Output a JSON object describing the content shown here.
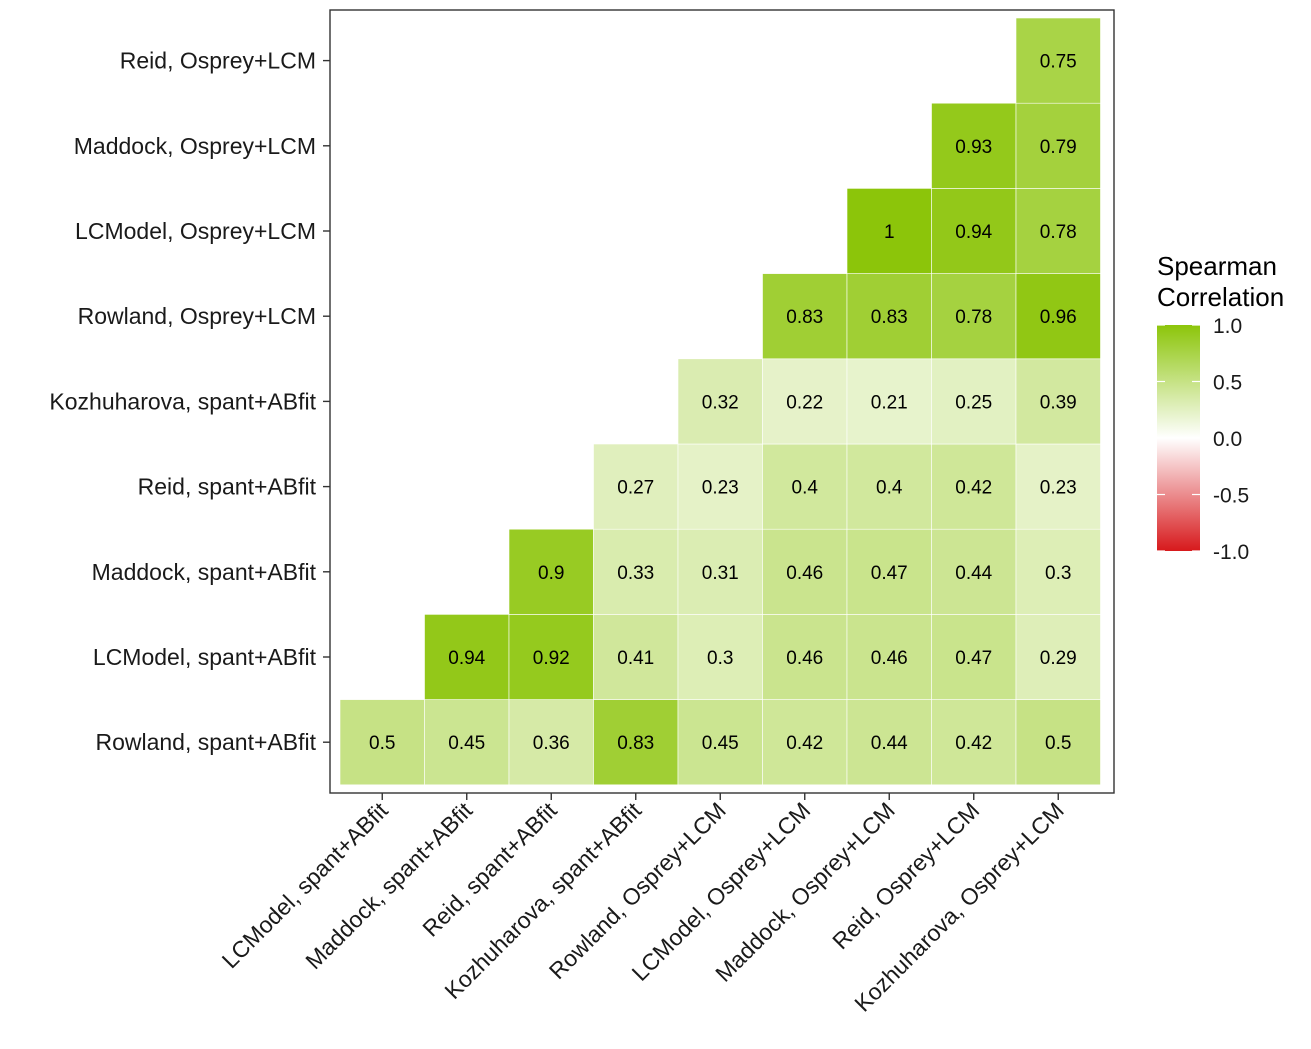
{
  "chart_data": {
    "type": "heatmap",
    "title": "",
    "xlabel": "",
    "ylabel": "",
    "x_categories": [
      "LCModel, spant+ABfit",
      "Maddock, spant+ABfit",
      "Reid, spant+ABfit",
      "Kozhuharova, spant+ABfit",
      "Rowland, Osprey+LCM",
      "LCModel, Osprey+LCM",
      "Maddock, Osprey+LCM",
      "Reid, Osprey+LCM",
      "Kozhuharova, Osprey+LCM"
    ],
    "y_categories": [
      "Rowland, spant+ABfit",
      "LCModel, spant+ABfit",
      "Maddock, spant+ABfit",
      "Reid, spant+ABfit",
      "Kozhuharova, spant+ABfit",
      "Rowland, Osprey+LCM",
      "LCModel, Osprey+LCM",
      "Maddock, Osprey+LCM",
      "Reid, Osprey+LCM"
    ],
    "values": [
      [
        0.5,
        0.45,
        0.36,
        0.83,
        0.45,
        0.42,
        0.44,
        0.42,
        0.5
      ],
      [
        null,
        0.94,
        0.92,
        0.41,
        0.3,
        0.46,
        0.46,
        0.47,
        0.29
      ],
      [
        null,
        null,
        0.9,
        0.33,
        0.31,
        0.46,
        0.47,
        0.44,
        0.3
      ],
      [
        null,
        null,
        null,
        0.27,
        0.23,
        0.4,
        0.4,
        0.42,
        0.23
      ],
      [
        null,
        null,
        null,
        null,
        0.32,
        0.22,
        0.21,
        0.25,
        0.39
      ],
      [
        null,
        null,
        null,
        null,
        null,
        0.83,
        0.83,
        0.78,
        0.96
      ],
      [
        null,
        null,
        null,
        null,
        null,
        null,
        1,
        0.94,
        0.78
      ],
      [
        null,
        null,
        null,
        null,
        null,
        null,
        null,
        0.93,
        0.79
      ],
      [
        null,
        null,
        null,
        null,
        null,
        null,
        null,
        null,
        0.75
      ]
    ],
    "legend": {
      "title_lines": [
        "Spearman",
        "Correlation"
      ],
      "ticks": [
        1.0,
        0.5,
        0.0,
        -0.5,
        -1.0
      ],
      "tick_labels": [
        "1.0",
        "0.5",
        "0.0",
        "-0.5",
        "-1.0"
      ],
      "placement": "right"
    },
    "colors": {
      "high": "#8CC50A",
      "mid": "#FFFFFF",
      "low": "#D7191C"
    },
    "value_range": [
      -1,
      1
    ],
    "grid": false
  }
}
